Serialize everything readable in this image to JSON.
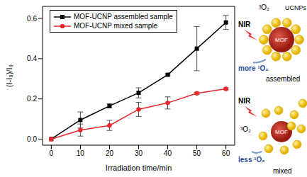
{
  "chart_data": {
    "type": "line",
    "x_label": "Irradiation time/min",
    "y_label": "(I-I₀)/I₀",
    "x": [
      0,
      10,
      20,
      30,
      40,
      50,
      60
    ],
    "xlim": [
      -3,
      63
    ],
    "xticks": [
      0,
      10,
      20,
      30,
      40,
      50,
      60
    ],
    "ylim": [
      -0.03,
      0.66
    ],
    "yticks": [
      {
        "value": 0,
        "label": "0.0"
      },
      0.2,
      0.4,
      0.6
    ],
    "grid": false,
    "legend": "upper left",
    "series": [
      {
        "name": "MOF-UCNP assembled sample",
        "color": "#000000",
        "marker": "square",
        "values": [
          0,
          0.095,
          0.165,
          0.23,
          0.32,
          0.45,
          0.58
        ],
        "errors": [
          0,
          0.04,
          0.01,
          0.025,
          0.005,
          0.11,
          0.035
        ]
      },
      {
        "name": "MOF-UCNP mixed sample",
        "color": "#e8262b",
        "marker": "circle",
        "values": [
          0,
          0.045,
          0.068,
          0.148,
          0.18,
          0.228,
          0.25
        ],
        "errors": [
          0,
          0.03,
          0.025,
          0.035,
          0.03,
          0.005,
          0.005
        ]
      }
    ]
  },
  "diagram": {
    "panels": [
      {
        "light": "NIR",
        "oxygen": "³O₂",
        "particles": "UCNPs",
        "core": "MOF",
        "product": "more ¹O₂",
        "label": "assembled"
      },
      {
        "light": "NIR",
        "oxygen": "³O₂",
        "core": "MOF",
        "product": "less ¹O₂",
        "label": "mixed"
      }
    ]
  }
}
